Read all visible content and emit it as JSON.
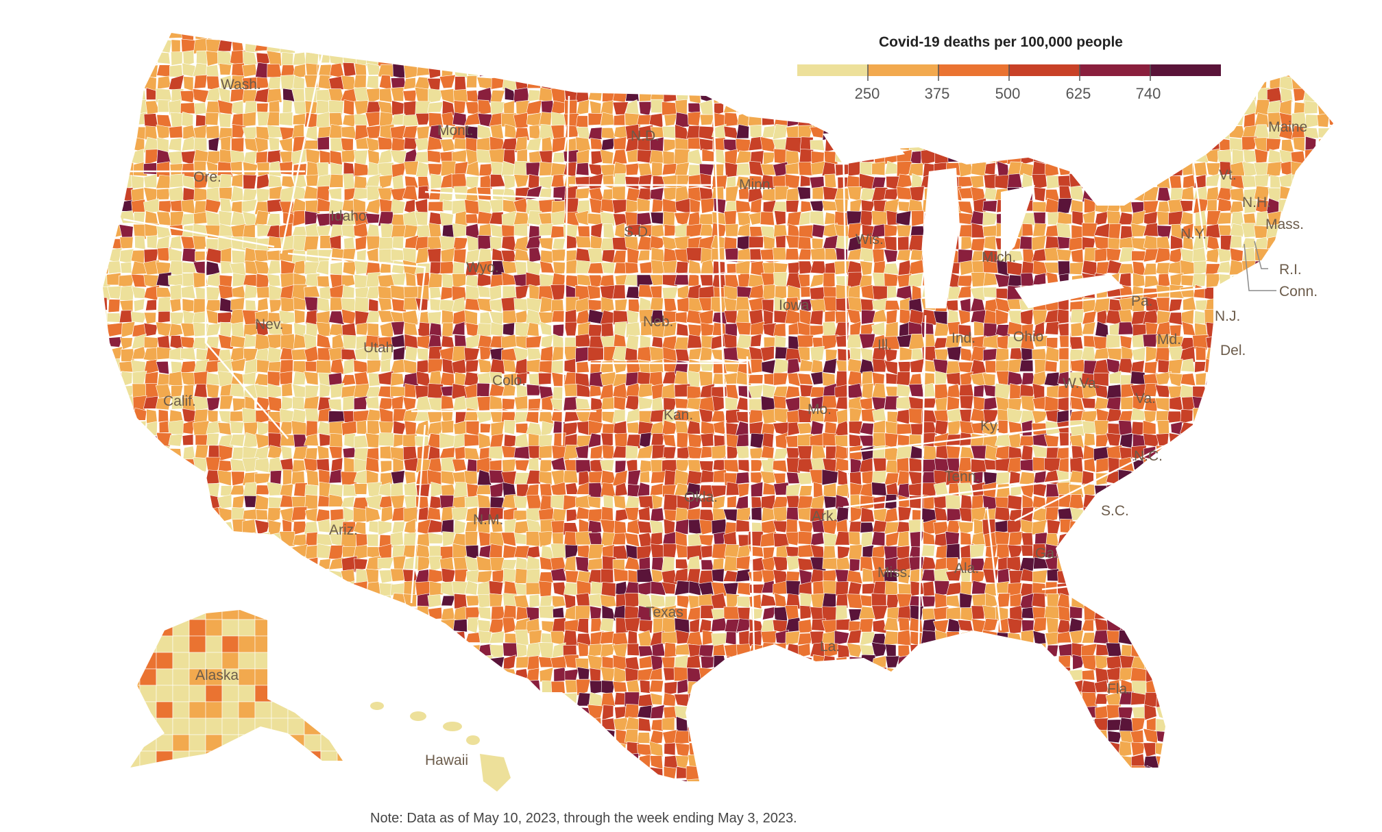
{
  "legend": {
    "title": "Covid-19 deaths per 100,000 people",
    "ticks": [
      "250",
      "375",
      "500",
      "625",
      "740"
    ],
    "colors": [
      "#ede09a",
      "#f2a94e",
      "#ea7331",
      "#c84127",
      "#8a1f3d",
      "#5a1439"
    ]
  },
  "state_labels": {
    "wash": "Wash.",
    "ore": "Ore.",
    "calif": "Calif.",
    "nev": "Nev.",
    "idaho": "Idaho",
    "mont": "Mont.",
    "wyo": "Wyo.",
    "utah": "Utah",
    "colo": "Colo.",
    "ariz": "Ariz.",
    "nm": "N.M.",
    "nd": "N.D.",
    "sd": "S.D.",
    "neb": "Neb.",
    "kan": "Kan.",
    "okla": "Okla.",
    "texas": "Texas",
    "minn": "Minn.",
    "iowa": "Iowa",
    "mo": "Mo.",
    "ark": "Ark.",
    "la": "La.",
    "wis": "Wis.",
    "ill": "Ill.",
    "mich": "Mich.",
    "ind": "Ind.",
    "ohio": "Ohio",
    "ky": "Ky.",
    "tenn": "Tenn.",
    "miss": "Miss.",
    "ala": "Ala.",
    "ga": "Ga.",
    "fla": "Fla.",
    "sc": "S.C.",
    "nc": "N.C.",
    "va": "Va.",
    "wva": "W.Va.",
    "pa": "Pa.",
    "ny": "N.Y.",
    "vt": "Vt.",
    "nh": "N.H.",
    "maine": "Maine",
    "mass": "Mass.",
    "ri": "R.I.",
    "conn": "Conn.",
    "nj": "N.J.",
    "del": "Del.",
    "md": "Md.",
    "alaska": "Alaska",
    "hawaii": "Hawaii"
  },
  "note": "Note: Data as of May 10, 2023, through the week ending May 3, 2023."
}
